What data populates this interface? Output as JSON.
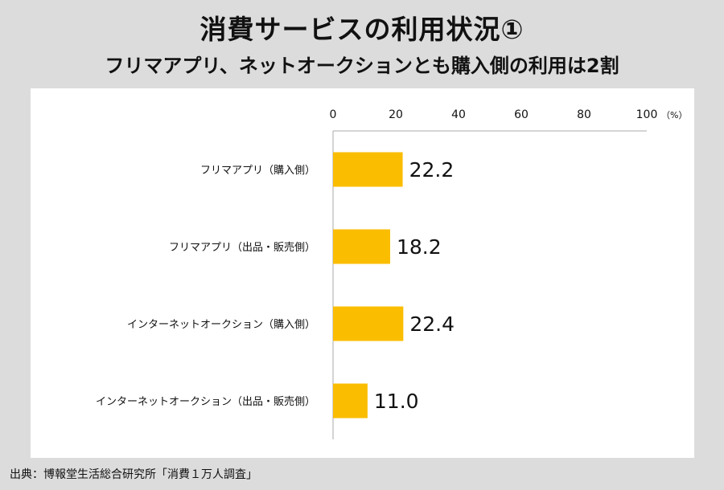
{
  "title": "消費サービスの利用状況①",
  "subtitle": "フリマアプリ、ネットオークションとも購入側の利用は2割",
  "source": "出典：博報堂生活総合研究所「消費１万人調査」",
  "colors": {
    "bar": "#fbbd00",
    "background": "#dcdcdc",
    "panel": "#ffffff",
    "axis": "#aaaaaa"
  },
  "chart_data": {
    "type": "bar",
    "orientation": "horizontal",
    "categories": [
      "フリマアプリ（購入側）",
      "フリマアプリ（出品・販売側）",
      "インターネットオークション（購入側）",
      "インターネットオークション（出品・販売側）"
    ],
    "values": [
      22.2,
      18.2,
      22.4,
      11.0
    ],
    "value_labels": [
      "22.2",
      "18.2",
      "22.4",
      "11.0"
    ],
    "xlim": [
      0,
      100
    ],
    "xticks": [
      "0",
      "20",
      "40",
      "60",
      "80",
      "100"
    ],
    "xunit": "（%）",
    "axis_position": "top",
    "grid": false,
    "legend": "none"
  }
}
